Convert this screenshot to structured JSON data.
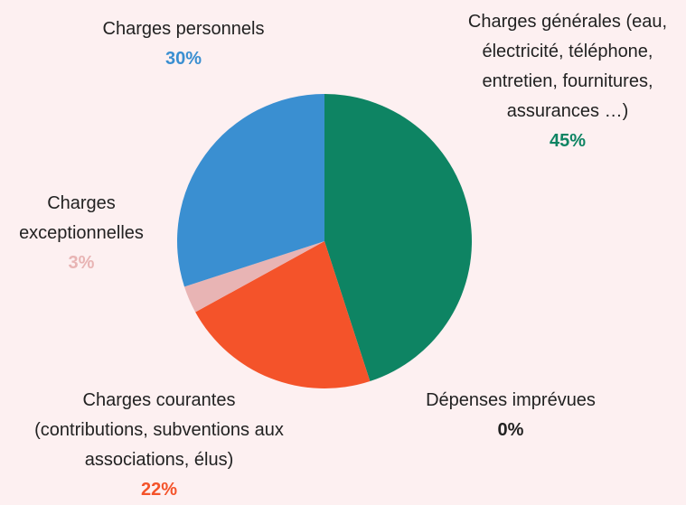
{
  "chart_data": {
    "type": "pie",
    "categories": [
      "Charges générales (eau, électricité, téléphone, entretien, fournitures, assurances …)",
      "Dépenses imprévues",
      "Charges courantes (contributions, subventions aux associations, élus)",
      "Charges exceptionnelles",
      "Charges personnels"
    ],
    "values": [
      45,
      0,
      22,
      3,
      30
    ],
    "value_labels": [
      "45%",
      "0%",
      "22%",
      "3%",
      "30%"
    ],
    "colors": [
      "#0e8463",
      "#222222",
      "#f4532a",
      "#e8b4b4",
      "#3a8fd1"
    ]
  }
}
